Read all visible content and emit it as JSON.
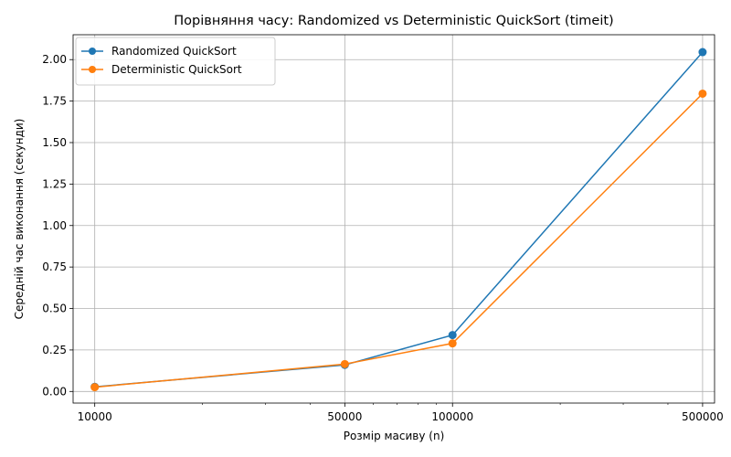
{
  "chart_data": {
    "type": "line",
    "title": "Порівняння часу: Randomized vs Deterministic QuickSort (timeit)",
    "xlabel": "Розмір масиву (n)",
    "ylabel": "Середній час виконання (секунди)",
    "x_scale": "log",
    "x": [
      10000,
      50000,
      100000,
      500000
    ],
    "x_tick_labels": [
      "10000",
      "50000",
      "100000",
      "500000"
    ],
    "y_ticks": [
      0.0,
      0.25,
      0.5,
      0.75,
      1.0,
      1.25,
      1.5,
      1.75,
      2.0
    ],
    "y_tick_labels": [
      "0.00",
      "0.25",
      "0.50",
      "0.75",
      "1.00",
      "1.25",
      "1.50",
      "1.75",
      "2.00"
    ],
    "xlim": [
      8700,
      540000
    ],
    "ylim": [
      -0.07,
      2.15
    ],
    "grid": true,
    "legend_position": "upper left",
    "series": [
      {
        "name": "Randomized QuickSort",
        "color": "#1f77b4",
        "marker": "circle",
        "values": [
          0.028,
          0.16,
          0.34,
          2.045
        ]
      },
      {
        "name": "Deterministic QuickSort",
        "color": "#ff7f0e",
        "marker": "circle",
        "values": [
          0.026,
          0.165,
          0.29,
          1.795
        ]
      }
    ]
  }
}
